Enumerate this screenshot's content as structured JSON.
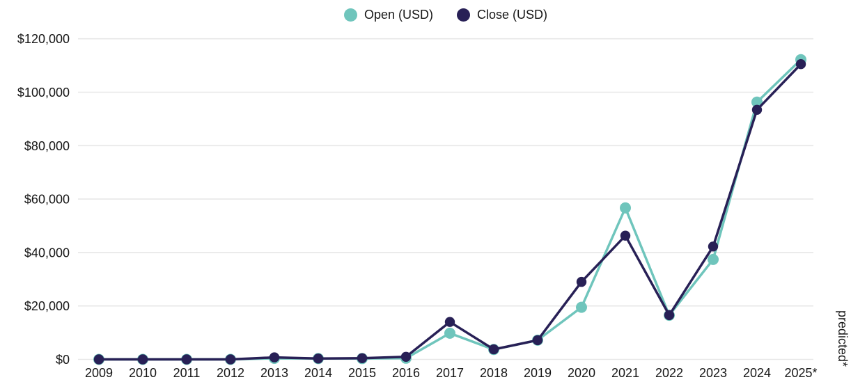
{
  "legend": {
    "items": [
      {
        "id": "open",
        "label": "Open (USD)",
        "color": "#6fc5bc"
      },
      {
        "id": "close",
        "label": "Close (USD)",
        "color": "#282056"
      }
    ]
  },
  "colors": {
    "background": "#ffffff",
    "gridline": "#e7e7e7",
    "text": "#161616",
    "open_series": "#6fc5bc",
    "close_series": "#282056"
  },
  "chart_data": {
    "type": "line",
    "title": "",
    "xlabel": "",
    "ylabel": "",
    "x": [
      "2009",
      "2010",
      "2011",
      "2012",
      "2013",
      "2014",
      "2015",
      "2016",
      "2017",
      "2018",
      "2019",
      "2020",
      "2021",
      "2022",
      "2023",
      "2024",
      "2025*"
    ],
    "series": [
      {
        "name": "Open (USD)",
        "color": "#6fc5bc",
        "values": [
          0,
          0,
          0,
          0,
          400,
          300,
          300,
          450,
          9800,
          3700,
          7200,
          19500,
          56700,
          16500,
          37400,
          96300,
          112200
        ]
      },
      {
        "name": "Close (USD)",
        "color": "#282056",
        "values": [
          0,
          0,
          0,
          10,
          750,
          320,
          430,
          960,
          14000,
          3740,
          7200,
          29000,
          46300,
          16550,
          42250,
          93400,
          110500
        ]
      }
    ],
    "ylim": [
      0,
      120000
    ],
    "yticks": [
      0,
      20000,
      40000,
      60000,
      80000,
      100000,
      120000
    ],
    "ytick_labels": [
      "$0",
      "$20,000",
      "$40,000",
      "$60,000",
      "$80,000",
      "$100,000",
      "$120,000"
    ],
    "grid": true,
    "legend_position": "top-center",
    "annotation": "predicted*"
  }
}
